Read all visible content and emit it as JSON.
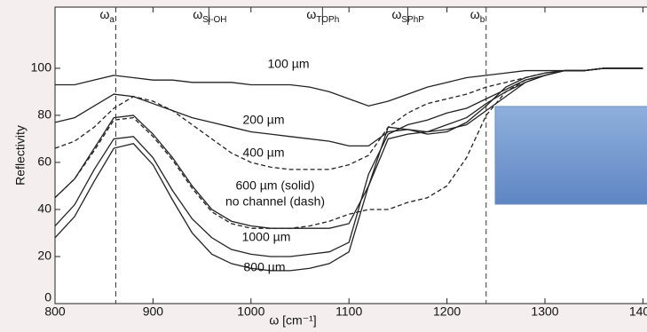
{
  "chart_data": {
    "type": "line",
    "xlabel": "ω  [cm⁻¹]",
    "ylabel": "Reflectivity",
    "x": [
      800,
      820,
      840,
      860,
      880,
      900,
      920,
      940,
      960,
      980,
      1000,
      1020,
      1040,
      1060,
      1080,
      1100,
      1120,
      1140,
      1160,
      1180,
      1200,
      1220,
      1240,
      1260,
      1280,
      1300,
      1320,
      1340,
      1360,
      1380,
      1400
    ],
    "series": [
      {
        "name": "100 µm",
        "color": "#222222",
        "dash": false,
        "values": [
          93,
          93,
          95,
          97,
          96,
          95,
          95,
          94,
          94,
          94,
          93,
          93,
          93,
          92,
          90,
          87,
          84,
          86,
          89,
          92,
          94,
          96,
          97,
          98,
          99,
          99,
          99,
          99,
          100,
          100,
          100
        ]
      },
      {
        "name": "200 µm",
        "color": "#222222",
        "dash": false,
        "values": [
          77,
          79,
          84,
          89,
          88,
          85,
          82,
          79,
          77,
          75,
          73,
          72,
          71,
          70,
          69,
          67,
          67,
          73,
          74,
          72,
          73,
          77,
          84,
          92,
          96,
          98,
          99,
          99,
          100,
          100,
          100
        ]
      },
      {
        "name": "400 µm",
        "color": "#222222",
        "dash": true,
        "values": [
          66,
          69,
          75,
          83,
          88,
          86,
          82,
          76,
          70,
          64,
          60,
          58,
          57,
          57,
          57,
          59,
          63,
          75,
          81,
          85,
          87,
          89,
          92,
          94,
          96,
          98,
          99,
          99,
          100,
          100,
          100
        ]
      },
      {
        "name": "600 µm (solid)",
        "color": "#222222",
        "dash": false,
        "values": [
          45,
          53,
          66,
          79,
          80,
          72,
          62,
          50,
          40,
          35,
          33,
          32,
          32,
          32,
          32,
          34,
          50,
          75,
          74,
          73,
          74,
          76,
          82,
          88,
          94,
          97,
          99,
          99,
          100,
          100,
          100
        ]
      },
      {
        "name": "no channel (dash)",
        "color": "#222222",
        "dash": true,
        "values": [
          45,
          53,
          65,
          78,
          79,
          71,
          61,
          49,
          39,
          34,
          32,
          32,
          32,
          33,
          35,
          38,
          40,
          40,
          43,
          45,
          50,
          62,
          80,
          90,
          95,
          97,
          99,
          99,
          100,
          100,
          100
        ]
      },
      {
        "name": "1000 µm",
        "color": "#222222",
        "dash": false,
        "values": [
          33,
          42,
          57,
          70,
          71,
          62,
          48,
          36,
          28,
          23,
          21,
          20,
          20,
          21,
          22,
          26,
          55,
          72,
          76,
          78,
          81,
          83,
          87,
          91,
          95,
          97,
          99,
          99,
          100,
          100,
          100
        ]
      },
      {
        "name": "800 µm",
        "color": "#222222",
        "dash": false,
        "values": [
          28,
          37,
          52,
          66,
          68,
          59,
          44,
          30,
          21,
          17,
          15,
          14,
          14,
          15,
          17,
          22,
          50,
          70,
          72,
          73,
          76,
          79,
          85,
          90,
          94,
          97,
          99,
          99,
          100,
          100,
          100
        ]
      }
    ],
    "annotations": [
      {
        "text": "ω",
        "sub": "a",
        "x": 862,
        "dashed": true
      },
      {
        "text": "ω",
        "sub": "Si-OH",
        "x": 957,
        "dashed": false
      },
      {
        "text": "ω",
        "sub": "TOPh",
        "x": 1073,
        "dashed": false
      },
      {
        "text": "ω",
        "sub": "SPhP",
        "x": 1160,
        "dashed": false
      },
      {
        "text": "ω",
        "sub": "b",
        "x": 1240,
        "dashed": true
      }
    ],
    "xlim": [
      800,
      1400
    ],
    "xticks": [
      800,
      900,
      1000,
      1100,
      1200,
      1300,
      1400
    ],
    "ylim": [
      0,
      126
    ],
    "yticks": [
      0,
      20,
      40,
      60,
      80,
      100
    ]
  }
}
